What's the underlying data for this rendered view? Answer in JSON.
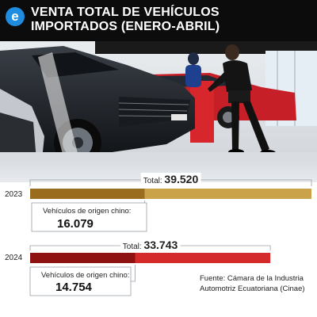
{
  "header": {
    "logo_letter": "e",
    "title_line1": "VENTA TOTAL DE VEHÍCULOS",
    "title_line2": "IMPORTADOS (ENERO-ABRIL)"
  },
  "colors": {
    "header_bg": "#0c0c0c",
    "logo_blue": "#1e8ce0",
    "bar_2023_total": "#c9a24a",
    "bar_2023_chinese": "#9a6d1e",
    "bar_2024_total": "#d42a2a",
    "bar_2024_chinese": "#8f1212"
  },
  "chart_data": {
    "type": "bar",
    "orientation": "horizontal",
    "title": "VENTA TOTAL DE VEHÍCULOS IMPORTADOS (ENERO-ABRIL)",
    "categories": [
      "2023",
      "2024"
    ],
    "series": [
      {
        "name": "Total",
        "values": [
          39520,
          33743
        ],
        "labels": [
          "39.520",
          "33.743"
        ]
      },
      {
        "name": "Vehículos de origen chino",
        "values": [
          16079,
          14754
        ],
        "labels": [
          "16.079",
          "14.754"
        ]
      }
    ],
    "total_label": "Total:",
    "chinese_label": "Vehículos de origen chino:",
    "xlim": [
      0,
      39520
    ]
  },
  "source": {
    "line1": "Fuente: Cámara de la Industria",
    "line2": "Automotriz Ecuatoriana (Cinae)"
  }
}
